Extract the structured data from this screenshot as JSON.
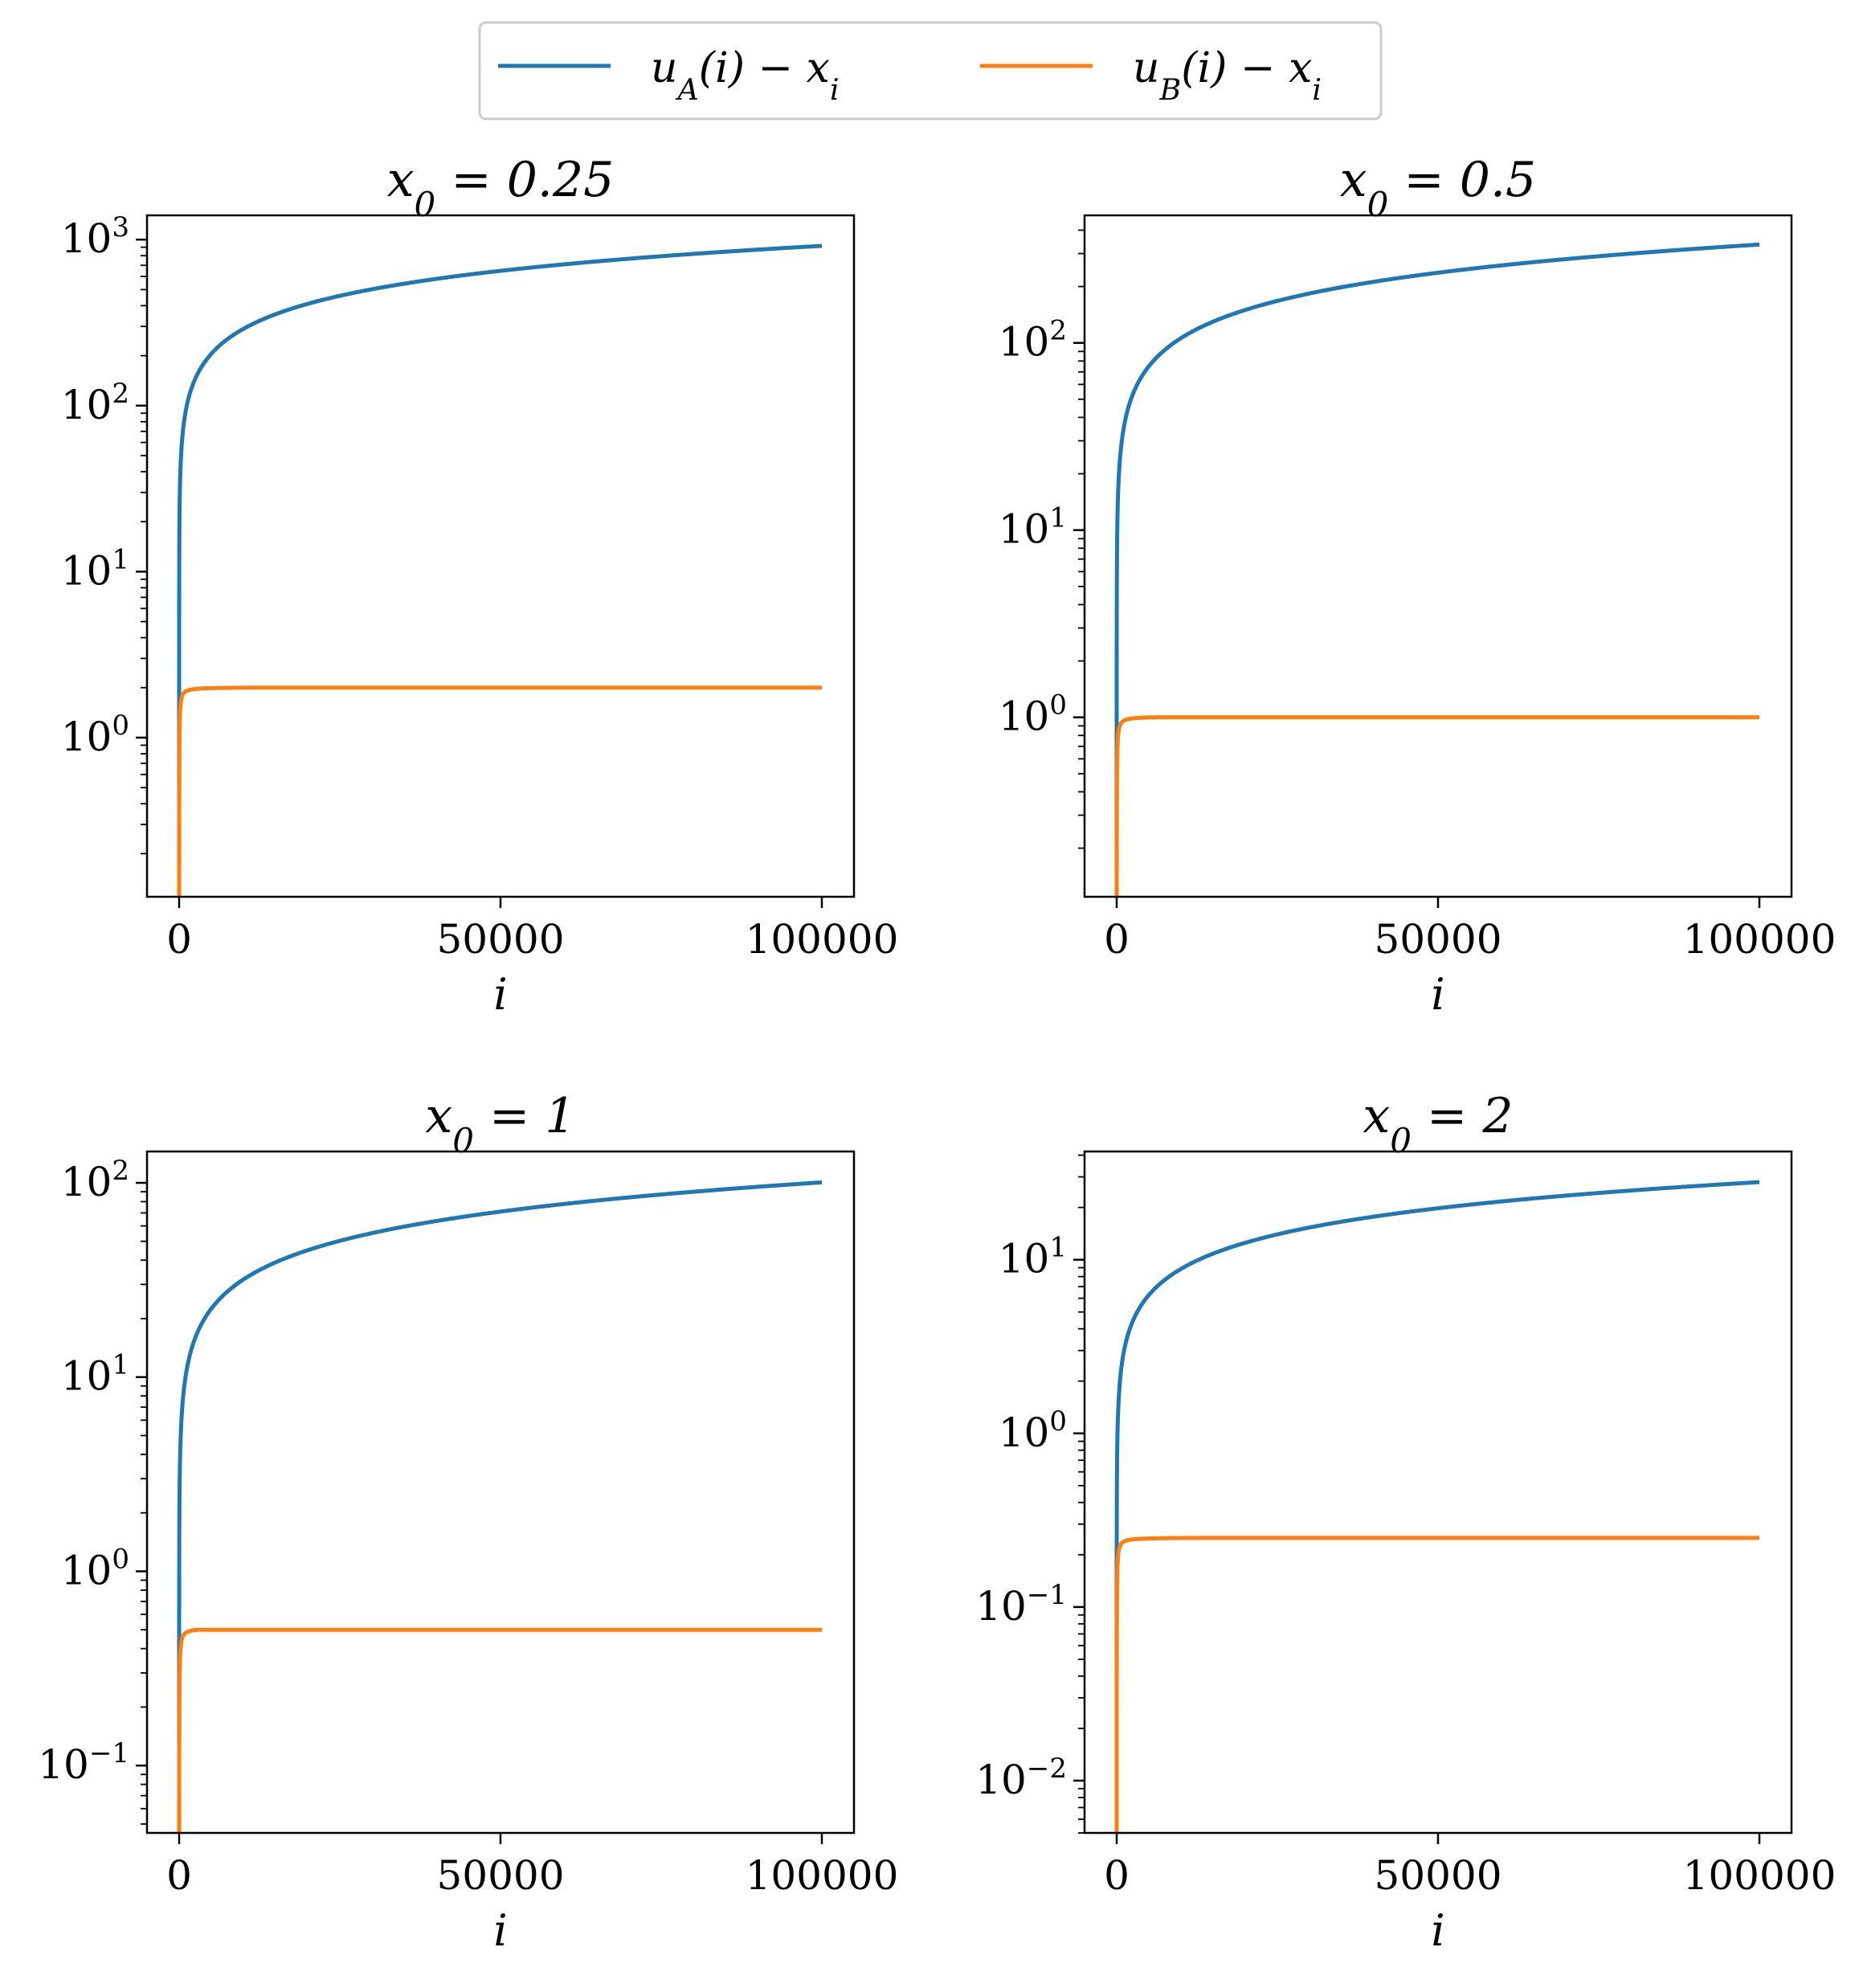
{
  "legend": {
    "entries": [
      {
        "label": "u_A(i) − x_i",
        "main": "u",
        "sub": "A",
        "rest": "(i) − x",
        "sub2": "i",
        "color": "#1f77b4"
      },
      {
        "label": "u_B(i) − x_i",
        "main": "u",
        "sub": "B",
        "rest": "(i) − x",
        "sub2": "i",
        "color": "#ff7f0e"
      }
    ]
  },
  "chart_data": [
    {
      "type": "line",
      "title": "x_0 = 0.25",
      "title_parts": {
        "var": "x",
        "sub": "0",
        "rest": " = 0.25"
      },
      "xlabel": "i",
      "yscale": "log",
      "xlim": [
        -5000,
        105000
      ],
      "ylim": [
        0.11,
        1400
      ],
      "xticks": [
        0,
        50000,
        100000
      ],
      "xtick_labels": [
        "0",
        "50000",
        "100000"
      ],
      "yticks": [
        1,
        10,
        100,
        1000
      ],
      "ytick_labels": [
        {
          "base": "10",
          "exp": "0"
        },
        {
          "base": "10",
          "exp": "1"
        },
        {
          "base": "10",
          "exp": "2"
        },
        {
          "base": "10",
          "exp": "3"
        }
      ],
      "series": [
        {
          "name": "u_A(i) − x_i",
          "color": "#1f77b4",
          "model": "sqrt",
          "y0": 0.01,
          "coef": 2.9,
          "x": [
            0,
            1000,
            5000,
            10000,
            25000,
            50000,
            75000,
            100000
          ],
          "values": [
            0.01,
            90,
            205,
            290,
            460,
            650,
            795,
            920
          ]
        },
        {
          "name": "u_B(i) − x_i",
          "color": "#ff7f0e",
          "model": "saturate",
          "y0": 0.01,
          "limit": 2.0,
          "x": [
            0,
            1000,
            5000,
            10000,
            50000,
            100000
          ],
          "values": [
            0.01,
            1.75,
            1.9,
            1.95,
            1.99,
            2.0
          ]
        }
      ]
    },
    {
      "type": "line",
      "title": "x_0 = 0.5",
      "title_parts": {
        "var": "x",
        "sub": "0",
        "rest": " = 0.5"
      },
      "xlabel": "i",
      "yscale": "log",
      "xlim": [
        -5000,
        105000
      ],
      "ylim": [
        0.11,
        480
      ],
      "xticks": [
        0,
        50000,
        100000
      ],
      "xtick_labels": [
        "0",
        "50000",
        "100000"
      ],
      "yticks": [
        1,
        10,
        100
      ],
      "ytick_labels": [
        {
          "base": "10",
          "exp": "0"
        },
        {
          "base": "10",
          "exp": "1"
        },
        {
          "base": "10",
          "exp": "2"
        }
      ],
      "series": [
        {
          "name": "u_A(i) − x_i",
          "color": "#1f77b4",
          "model": "sqrt",
          "y0": 0.01,
          "coef": 1.06,
          "x": [
            0,
            1000,
            5000,
            10000,
            25000,
            50000,
            75000,
            100000
          ],
          "values": [
            0.01,
            33,
            75,
            106,
            168,
            237,
            290,
            335
          ]
        },
        {
          "name": "u_B(i) − x_i",
          "color": "#ff7f0e",
          "model": "saturate",
          "y0": 0.01,
          "limit": 1.0,
          "x": [
            0,
            1000,
            5000,
            10000,
            50000,
            100000
          ],
          "values": [
            0.01,
            0.88,
            0.95,
            0.97,
            0.99,
            1.0
          ]
        }
      ]
    },
    {
      "type": "line",
      "title": "x_0 = 1",
      "title_parts": {
        "var": "x",
        "sub": "0",
        "rest": " = 1"
      },
      "xlabel": "i",
      "yscale": "log",
      "xlim": [
        -5000,
        105000
      ],
      "ylim": [
        0.045,
        145
      ],
      "xticks": [
        0,
        50000,
        100000
      ],
      "xtick_labels": [
        "0",
        "50000",
        "100000"
      ],
      "yticks": [
        0.1,
        1,
        10,
        100
      ],
      "ytick_labels": [
        {
          "base": "10",
          "exp": "−1"
        },
        {
          "base": "10",
          "exp": "0"
        },
        {
          "base": "10",
          "exp": "1"
        },
        {
          "base": "10",
          "exp": "2"
        }
      ],
      "series": [
        {
          "name": "u_A(i) − x_i",
          "color": "#1f77b4",
          "model": "sqrt",
          "y0": 0.01,
          "coef": 0.318,
          "x": [
            0,
            1000,
            5000,
            10000,
            25000,
            50000,
            75000,
            100000
          ],
          "values": [
            0.01,
            10,
            22.5,
            31.8,
            50,
            71,
            87,
            100
          ]
        },
        {
          "name": "u_B(i) − x_i",
          "color": "#ff7f0e",
          "model": "saturate",
          "y0": 0.01,
          "limit": 0.5,
          "x": [
            0,
            1000,
            5000,
            10000,
            50000,
            100000
          ],
          "values": [
            0.01,
            0.44,
            0.475,
            0.485,
            0.495,
            0.5
          ]
        }
      ]
    },
    {
      "type": "line",
      "title": "x_0 = 2",
      "title_parts": {
        "var": "x",
        "sub": "0",
        "rest": " = 2"
      },
      "xlabel": "i",
      "yscale": "log",
      "xlim": [
        -5000,
        105000
      ],
      "ylim": [
        0.005,
        42
      ],
      "xticks": [
        0,
        50000,
        100000
      ],
      "xtick_labels": [
        "0",
        "50000",
        "100000"
      ],
      "yticks": [
        0.01,
        0.1,
        1,
        10
      ],
      "ytick_labels": [
        {
          "base": "10",
          "exp": "−2"
        },
        {
          "base": "10",
          "exp": "−1"
        },
        {
          "base": "10",
          "exp": "0"
        },
        {
          "base": "10",
          "exp": "1"
        }
      ],
      "series": [
        {
          "name": "u_A(i) − x_i",
          "color": "#1f77b4",
          "model": "sqrt",
          "y0": 0.001,
          "coef": 0.0885,
          "x": [
            0,
            1000,
            5000,
            10000,
            25000,
            50000,
            75000,
            100000
          ],
          "values": [
            0.001,
            2.8,
            6.3,
            8.85,
            14,
            19.8,
            24.2,
            28
          ]
        },
        {
          "name": "u_B(i) − x_i",
          "color": "#ff7f0e",
          "model": "saturate",
          "y0": 0.001,
          "limit": 0.25,
          "x": [
            0,
            1000,
            5000,
            10000,
            50000,
            100000
          ],
          "values": [
            0.001,
            0.215,
            0.235,
            0.242,
            0.248,
            0.25
          ]
        }
      ]
    }
  ]
}
